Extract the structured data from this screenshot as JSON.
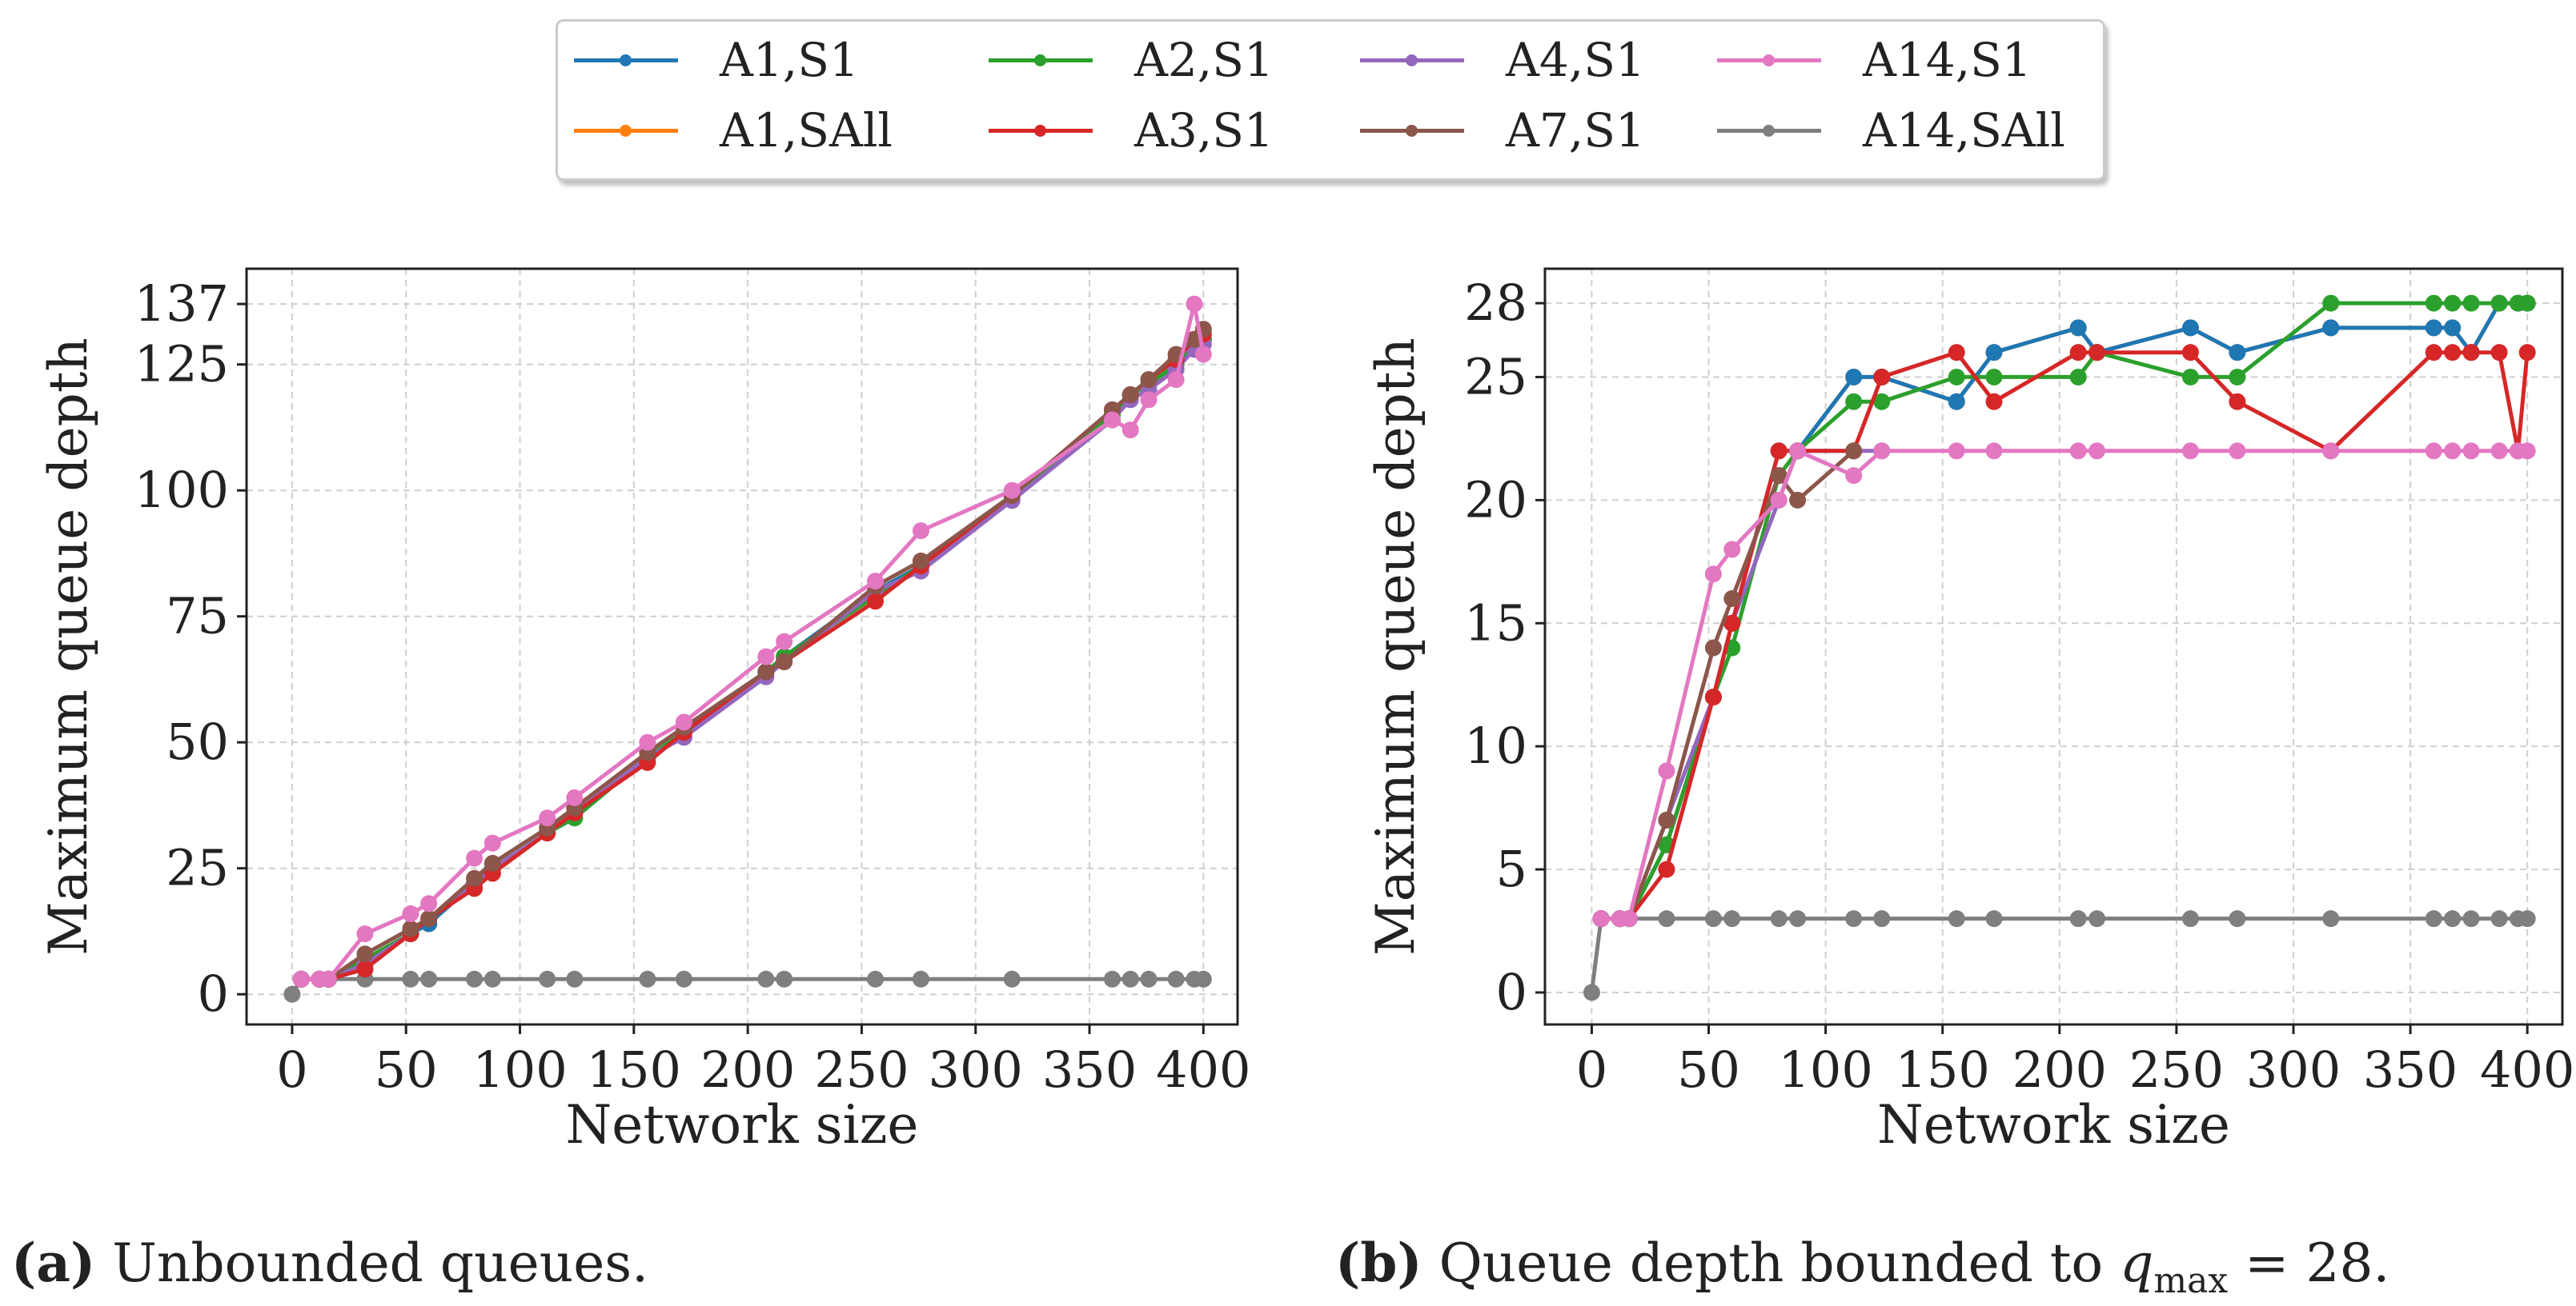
{
  "colors": {
    "A1,S1": "#1f77b4",
    "A1,SAll": "#ff7f0e",
    "A2,S1": "#2ca02c",
    "A3,S1": "#d62728",
    "A4,S1": "#9467bd",
    "A7,S1": "#8c564b",
    "A14,S1": "#e377c2",
    "A14,SAll": "#7f7f7f"
  },
  "legend": {
    "items": [
      {
        "label": "A1,S1",
        "color": "#1f77b4"
      },
      {
        "label": "A1,SAll",
        "color": "#ff7f0e"
      },
      {
        "label": "A2,S1",
        "color": "#2ca02c"
      },
      {
        "label": "A3,S1",
        "color": "#d62728"
      },
      {
        "label": "A4,S1",
        "color": "#9467bd"
      },
      {
        "label": "A7,S1",
        "color": "#8c564b"
      },
      {
        "label": "A14,S1",
        "color": "#e377c2"
      },
      {
        "label": "A14,SAll",
        "color": "#7f7f7f"
      }
    ]
  },
  "captions": {
    "a_tag": "(a)",
    "a_text": "Unbounded queues.",
    "b_tag": "(b)",
    "b_text_prefix": "Queue depth bounded to",
    "b_math_var": "q",
    "b_math_sub": "max",
    "b_math_rest": " = 28."
  },
  "chart_data": [
    {
      "type": "line",
      "panel": "a",
      "title": "",
      "xlabel": "Network size",
      "ylabel": "Maximum queue depth",
      "xlim": [
        -20,
        415
      ],
      "ylim": [
        -6,
        144
      ],
      "xticks": [
        0,
        50,
        100,
        150,
        200,
        250,
        300,
        350,
        400
      ],
      "yticks": [
        0,
        25,
        50,
        75,
        100,
        125,
        137
      ],
      "grid": true,
      "series": [
        {
          "name": "A14,SAll",
          "x": [
            0,
            4,
            12,
            16,
            32,
            52,
            60,
            80,
            88,
            112,
            124,
            156,
            172,
            208,
            216,
            256,
            276,
            316,
            360,
            368,
            376,
            388,
            396,
            400
          ],
          "y": [
            0,
            3,
            3,
            3,
            3,
            3,
            3,
            3,
            3,
            3,
            3,
            3,
            3,
            3,
            3,
            3,
            3,
            3,
            3,
            3,
            3,
            3,
            3,
            3
          ]
        },
        {
          "name": "A1,SAll",
          "x": [
            4,
            12,
            16,
            32,
            52,
            60,
            80,
            88,
            112,
            124,
            156,
            172,
            208,
            216,
            256,
            276,
            316,
            360,
            368,
            376,
            388,
            396,
            400
          ],
          "y": [
            3,
            3,
            3,
            6,
            12,
            14,
            22,
            25,
            32,
            36,
            47,
            52,
            64,
            67,
            80,
            85,
            99,
            115,
            119,
            121,
            125,
            129,
            130
          ]
        },
        {
          "name": "A1,S1",
          "x": [
            4,
            12,
            16,
            32,
            52,
            60,
            80,
            88,
            112,
            124,
            156,
            172,
            208,
            216,
            256,
            276,
            316,
            360,
            368,
            376,
            388,
            396,
            400
          ],
          "y": [
            3,
            3,
            3,
            6,
            12,
            14,
            22,
            25,
            32,
            35,
            47,
            52,
            64,
            67,
            80,
            85,
            99,
            115,
            119,
            121,
            125,
            128,
            130
          ]
        },
        {
          "name": "A2,S1",
          "x": [
            4,
            12,
            16,
            32,
            52,
            60,
            80,
            88,
            112,
            124,
            156,
            172,
            208,
            216,
            256,
            276,
            316,
            360,
            368,
            376,
            388,
            396,
            400
          ],
          "y": [
            3,
            3,
            3,
            7,
            12,
            15,
            22,
            25,
            32,
            35,
            47,
            52,
            64,
            67,
            79,
            85,
            99,
            115,
            119,
            121,
            125,
            129,
            130
          ]
        },
        {
          "name": "A4,S1",
          "x": [
            4,
            12,
            16,
            32,
            52,
            60,
            80,
            88,
            112,
            124,
            156,
            172,
            208,
            216,
            256,
            276,
            316,
            360,
            368,
            376,
            388,
            396,
            400
          ],
          "y": [
            3,
            3,
            3,
            6,
            12,
            15,
            22,
            25,
            32,
            36,
            47,
            51,
            63,
            66,
            80,
            84,
            98,
            114,
            118,
            120,
            124,
            128,
            129
          ]
        },
        {
          "name": "A3,S1",
          "x": [
            4,
            12,
            16,
            32,
            52,
            60,
            80,
            88,
            112,
            124,
            156,
            172,
            208,
            216,
            256,
            276,
            316,
            360,
            368,
            376,
            388,
            396,
            400
          ],
          "y": [
            3,
            3,
            3,
            5,
            12,
            15,
            21,
            24,
            32,
            36,
            46,
            52,
            64,
            66,
            78,
            85,
            99,
            116,
            119,
            122,
            126,
            130,
            131
          ]
        },
        {
          "name": "A7,S1",
          "x": [
            4,
            12,
            16,
            32,
            52,
            60,
            80,
            88,
            112,
            124,
            156,
            172,
            208,
            216,
            256,
            276,
            316,
            360,
            368,
            376,
            388,
            396,
            400
          ],
          "y": [
            3,
            3,
            3,
            8,
            13,
            15,
            23,
            26,
            33,
            37,
            48,
            53,
            64,
            66,
            81,
            86,
            99,
            116,
            119,
            122,
            127,
            130,
            132
          ]
        },
        {
          "name": "A14,S1",
          "x": [
            4,
            12,
            16,
            32,
            52,
            60,
            80,
            88,
            112,
            124,
            156,
            172,
            208,
            216,
            256,
            276,
            316,
            360,
            368,
            376,
            388,
            396,
            400
          ],
          "y": [
            3,
            3,
            3,
            12,
            16,
            18,
            27,
            30,
            35,
            39,
            50,
            54,
            67,
            70,
            82,
            92,
            100,
            114,
            112,
            118,
            122,
            137,
            127
          ]
        }
      ]
    },
    {
      "type": "line",
      "panel": "b",
      "title": "",
      "xlabel": "Network size",
      "ylabel": "Maximum queue depth",
      "xlim": [
        -20,
        415
      ],
      "ylim": [
        -1.3,
        29.4
      ],
      "xticks": [
        0,
        50,
        100,
        150,
        200,
        250,
        300,
        350,
        400
      ],
      "yticks": [
        0,
        5,
        10,
        15,
        20,
        25,
        28
      ],
      "grid": true,
      "series": [
        {
          "name": "A14,SAll",
          "x": [
            0,
            4,
            12,
            16,
            32,
            52,
            60,
            80,
            88,
            112,
            124,
            156,
            172,
            208,
            216,
            256,
            276,
            316,
            360,
            368,
            376,
            388,
            396,
            400
          ],
          "y": [
            0,
            3,
            3,
            3,
            3,
            3,
            3,
            3,
            3,
            3,
            3,
            3,
            3,
            3,
            3,
            3,
            3,
            3,
            3,
            3,
            3,
            3,
            3,
            3
          ]
        },
        {
          "name": "A1,SAll",
          "x": [
            4,
            12,
            16,
            32,
            52,
            60,
            80,
            88,
            112,
            124,
            156,
            172,
            208,
            216,
            256,
            276,
            316,
            360,
            368,
            376,
            388,
            396,
            400
          ],
          "y": [
            3,
            3,
            3,
            6,
            12,
            15,
            22,
            22,
            25,
            25,
            24,
            26,
            27,
            26,
            27,
            26,
            27,
            27,
            27,
            26,
            28,
            28,
            28
          ]
        },
        {
          "name": "A1,S1",
          "x": [
            4,
            12,
            16,
            32,
            52,
            60,
            80,
            88,
            112,
            124,
            156,
            172,
            208,
            216,
            256,
            276,
            316,
            360,
            368,
            376,
            388,
            396,
            400
          ],
          "y": [
            3,
            3,
            3,
            6,
            12,
            15,
            22,
            22,
            25,
            25,
            24,
            26,
            27,
            26,
            27,
            26,
            27,
            27,
            27,
            26,
            28,
            28,
            28
          ]
        },
        {
          "name": "A2,S1",
          "x": [
            4,
            12,
            16,
            32,
            52,
            60,
            80,
            88,
            112,
            124,
            156,
            172,
            208,
            216,
            256,
            276,
            316,
            360,
            368,
            376,
            388,
            396,
            400
          ],
          "y": [
            3,
            3,
            3,
            6,
            12,
            14,
            21,
            22,
            24,
            24,
            25,
            25,
            25,
            26,
            25,
            25,
            28,
            28,
            28,
            28,
            28,
            28,
            28
          ]
        },
        {
          "name": "A4,S1",
          "x": [
            4,
            12,
            16,
            32,
            52,
            60,
            80,
            88,
            112,
            124
          ],
          "y": [
            3,
            3,
            3,
            7,
            12,
            15,
            20,
            22,
            22,
            22
          ]
        },
        {
          "name": "A3,S1",
          "x": [
            4,
            12,
            16,
            32,
            52,
            60,
            80,
            88,
            112,
            124,
            156,
            172,
            208,
            216,
            256,
            276,
            316,
            360,
            368,
            376,
            388,
            396,
            400
          ],
          "y": [
            3,
            3,
            3,
            5,
            12,
            15,
            22,
            22,
            22,
            25,
            26,
            24,
            26,
            26,
            26,
            24,
            22,
            26,
            26,
            26,
            26,
            22,
            26
          ]
        },
        {
          "name": "A7,S1",
          "x": [
            4,
            12,
            16,
            32,
            52,
            60,
            80,
            88,
            112
          ],
          "y": [
            3,
            3,
            3,
            7,
            14,
            16,
            21,
            20,
            22
          ]
        },
        {
          "name": "A14,S1",
          "x": [
            4,
            12,
            16,
            32,
            52,
            60,
            80,
            88,
            112,
            124,
            156,
            172,
            208,
            216,
            256,
            276,
            316,
            360,
            368,
            376,
            388,
            396,
            400
          ],
          "y": [
            3,
            3,
            3,
            9,
            17,
            18,
            20,
            22,
            21,
            22,
            22,
            22,
            22,
            22,
            22,
            22,
            22,
            22,
            22,
            22,
            22,
            22,
            22
          ]
        }
      ]
    }
  ]
}
